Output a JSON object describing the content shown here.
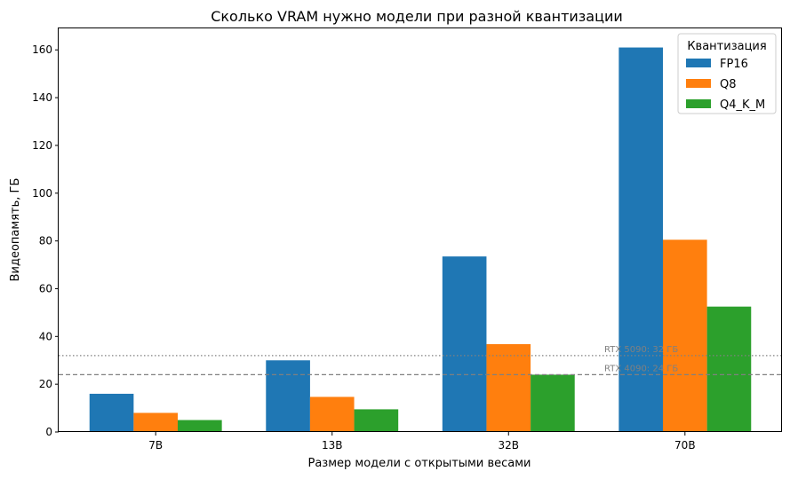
{
  "chart_data": {
    "type": "bar",
    "title": "Сколько VRAM нужно модели при разной квантизации",
    "xlabel": "Размер модели с открытыми весами",
    "ylabel": "Видеопамять, ГБ",
    "categories": [
      "7B",
      "13B",
      "32B",
      "70B"
    ],
    "series": [
      {
        "name": "FP16",
        "color": "#1f77b4",
        "values": [
          16,
          30,
          73.5,
          161
        ]
      },
      {
        "name": "Q8",
        "color": "#ff7f0e",
        "values": [
          8,
          14.7,
          36.8,
          80.5
        ]
      },
      {
        "name": "Q4_K_M",
        "color": "#2ca02c",
        "values": [
          5,
          9.5,
          24,
          52.5
        ]
      }
    ],
    "ylim": [
      0,
      169
    ],
    "yticks": [
      0,
      20,
      40,
      60,
      80,
      100,
      120,
      140,
      160
    ],
    "reference_lines": [
      {
        "label": "RTX 5090: 32 ГБ",
        "value": 32,
        "style": "dotted",
        "color": "#808080"
      },
      {
        "label": "RTX 4090: 24 ГБ",
        "value": 24,
        "style": "dashed",
        "color": "#808080"
      }
    ],
    "legend": {
      "title": "Квантизация",
      "placement": "top-right"
    },
    "grid": false
  }
}
